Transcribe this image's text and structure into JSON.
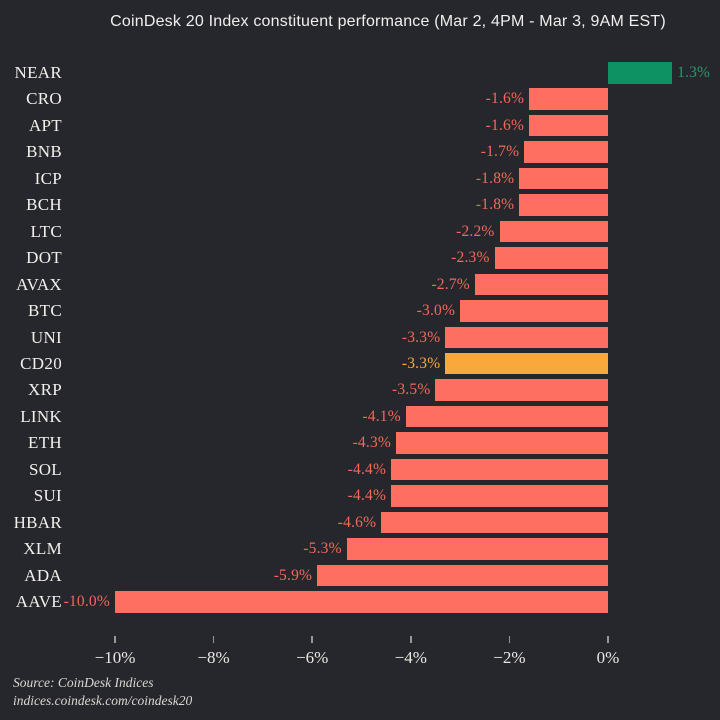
{
  "title": "CoinDesk 20 Index constituent performance (Mar 2, 4PM - Mar 3, 9AM EST)",
  "source": {
    "line1": "Source: CoinDesk Indices",
    "line2": "indices.coindesk.com/coindesk20"
  },
  "colors": {
    "background": "#26272c",
    "negative": "#ff6f61",
    "positive": "#0e9163",
    "highlight": "#f9a93c",
    "negative_label": "#f4685a",
    "positive_label": "#27996b",
    "highlight_label": "#f9a93c"
  },
  "chart_data": {
    "type": "bar",
    "orientation": "horizontal",
    "title": "CoinDesk 20 Index constituent performance (Mar 2, 4PM - Mar 3, 9AM EST)",
    "xlabel": "",
    "ylabel": "",
    "grid": false,
    "legend": "none",
    "xlim": [
      -11.1,
      2.3
    ],
    "categories": [
      "NEAR",
      "CRO",
      "APT",
      "BNB",
      "ICP",
      "BCH",
      "LTC",
      "DOT",
      "AVAX",
      "BTC",
      "UNI",
      "CD20",
      "XRP",
      "LINK",
      "ETH",
      "SOL",
      "SUI",
      "HBAR",
      "XLM",
      "ADA",
      "AAVE"
    ],
    "values": [
      1.3,
      -1.6,
      -1.6,
      -1.7,
      -1.8,
      -1.8,
      -2.2,
      -2.3,
      -2.7,
      -3.0,
      -3.3,
      -3.3,
      -3.5,
      -4.1,
      -4.3,
      -4.4,
      -4.4,
      -4.6,
      -5.3,
      -5.9,
      -10.0
    ],
    "value_labels": [
      "1.3%",
      "-1.6%",
      "-1.6%",
      "-1.7%",
      "-1.8%",
      "-1.8%",
      "-2.2%",
      "-2.3%",
      "-2.7%",
      "-3.0%",
      "-3.3%",
      "-3.3%",
      "-3.5%",
      "-4.1%",
      "-4.3%",
      "-4.4%",
      "-4.4%",
      "-4.6%",
      "-5.3%",
      "-5.9%",
      "-10.0%"
    ],
    "color_roles": [
      "positive",
      "negative",
      "negative",
      "negative",
      "negative",
      "negative",
      "negative",
      "negative",
      "negative",
      "negative",
      "negative",
      "highlight",
      "negative",
      "negative",
      "negative",
      "negative",
      "negative",
      "negative",
      "negative",
      "negative",
      "negative"
    ],
    "highlighted_category": "CD20",
    "xticks": {
      "values": [
        -10,
        -8,
        -6,
        -4,
        -2,
        0
      ],
      "labels": [
        "−10%",
        "−8%",
        "−6%",
        "−4%",
        "−2%",
        "0%"
      ]
    }
  }
}
